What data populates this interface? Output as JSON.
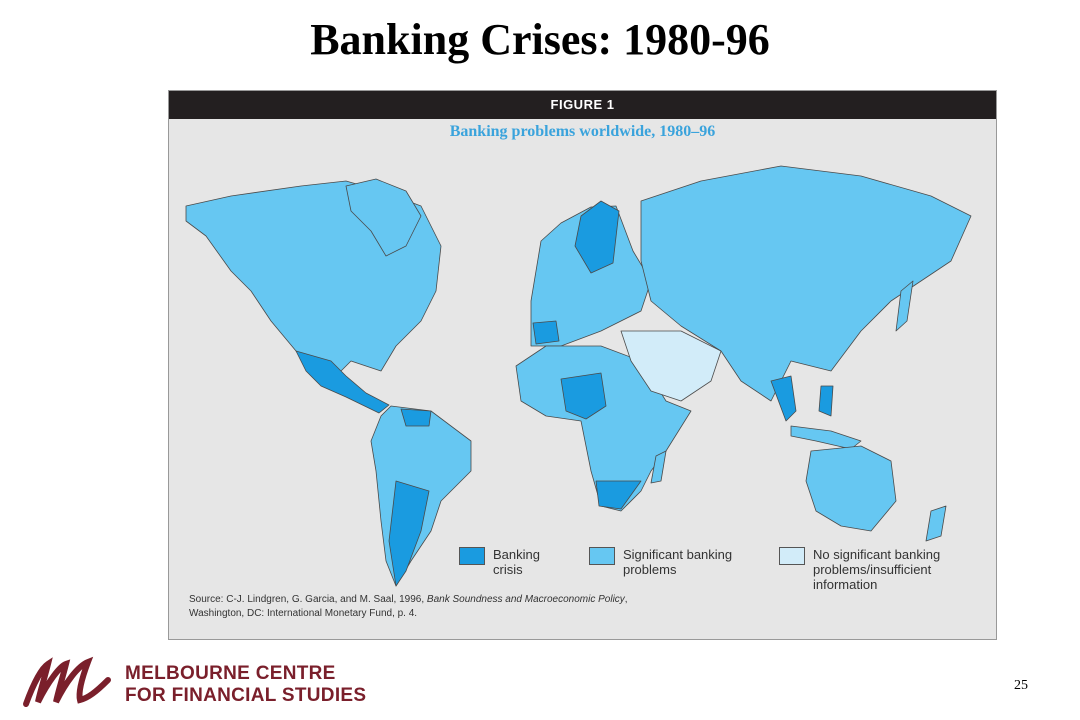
{
  "title": "Banking Crises: 1980-96",
  "figure": {
    "label": "FIGURE 1",
    "subtitle": "Banking problems worldwide, 1980–96",
    "legend": [
      {
        "label": "Banking crisis",
        "color": "#1a9be0"
      },
      {
        "label": "Significant banking problems",
        "color": "#66c7f2"
      },
      {
        "label": "No significant banking problems/insufficient information",
        "color": "#d2ecf9"
      }
    ],
    "source": {
      "prefix": "Source: C-J. Lindgren, G. Garcia, and M. Saal, 1996,",
      "italic": "Bank Soundness and Macroeconomic Policy",
      "suffix": ", Washington, DC: International Monetary Fund, p. 4."
    }
  },
  "footer": {
    "logo": [
      "MELBOURNE CENTRE",
      "FOR FINANCIAL STUDIES"
    ],
    "page": "25"
  }
}
